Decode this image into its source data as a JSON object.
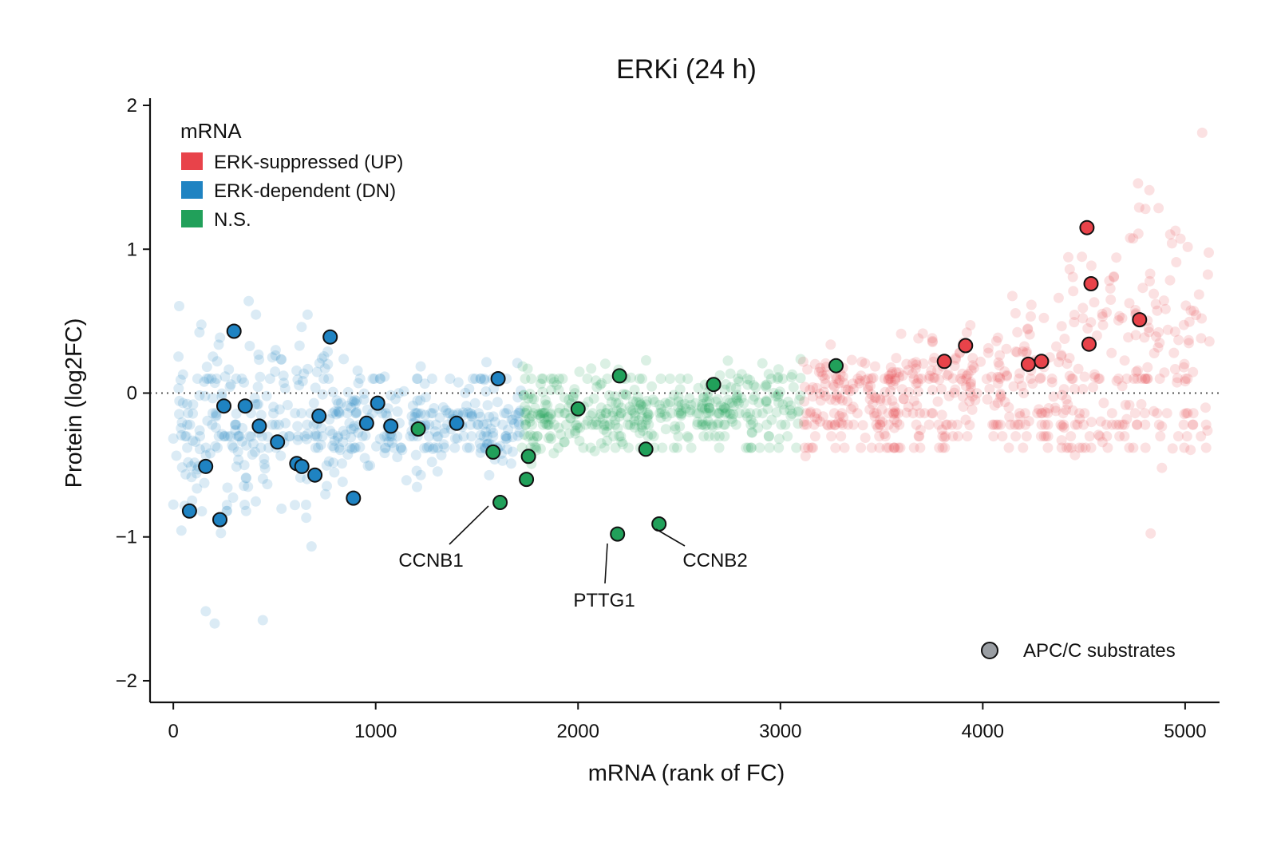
{
  "chart_data": {
    "type": "scatter",
    "title": "ERKi (24 h)",
    "xlabel": "mRNA (rank of FC)",
    "ylabel": "Protein (log2FC)",
    "xlim": [
      -115,
      5170
    ],
    "ylim": [
      -2.15,
      2.05
    ],
    "x_ticks": [
      0,
      1000,
      2000,
      3000,
      4000,
      5000
    ],
    "y_ticks": [
      2,
      1,
      0,
      -1,
      -2
    ],
    "y_tick_labels": [
      "2",
      "1",
      "0",
      "−1",
      "−2"
    ],
    "zero_line": {
      "y": 0,
      "style": "dotted"
    },
    "legend": {
      "title": "mRNA",
      "placement": "top-left",
      "entries": [
        {
          "label": "ERK-suppressed (UP)",
          "color": "#e8434a"
        },
        {
          "label": "ERK-dependent (DN)",
          "color": "#1f83c2"
        },
        {
          "label": "N.S.",
          "color": "#21a05a"
        }
      ]
    },
    "marker_legend": {
      "label": "APC/C substrates",
      "color": "#9a9ea3",
      "placement": "bottom-right"
    },
    "background_points": {
      "description": "approx. 5100 genes, x = rank of mRNA FC, y = protein log2FC, semi-transparent",
      "segments": [
        {
          "category": "ERK-dependent (DN)",
          "x_range": [
            0,
            1720
          ]
        },
        {
          "category": "N.S.",
          "x_range": [
            1720,
            3100
          ]
        },
        {
          "category": "ERK-suppressed (UP)",
          "x_range": [
            3100,
            5120
          ]
        }
      ]
    },
    "series": [
      {
        "category": "ERK-dependent (DN)",
        "color": "#1f83c2",
        "points": [
          [
            80,
            -0.82
          ],
          [
            160,
            -0.51
          ],
          [
            230,
            -0.88
          ],
          [
            250,
            -0.09
          ],
          [
            300,
            0.43
          ],
          [
            355,
            -0.09
          ],
          [
            425,
            -0.23
          ],
          [
            515,
            -0.34
          ],
          [
            610,
            -0.49
          ],
          [
            635,
            -0.51
          ],
          [
            700,
            -0.57
          ],
          [
            720,
            -0.16
          ],
          [
            775,
            0.39
          ],
          [
            890,
            -0.73
          ],
          [
            955,
            -0.21
          ],
          [
            1010,
            -0.07
          ],
          [
            1075,
            -0.23
          ],
          [
            1400,
            -0.21
          ],
          [
            1605,
            0.1
          ]
        ]
      },
      {
        "category": "N.S.",
        "color": "#21a05a",
        "points": [
          [
            1210,
            -0.25
          ],
          [
            1580,
            -0.41
          ],
          [
            1615,
            -0.76
          ],
          [
            1745,
            -0.6
          ],
          [
            1755,
            -0.44
          ],
          [
            2000,
            -0.11
          ],
          [
            2195,
            -0.98
          ],
          [
            2205,
            0.12
          ],
          [
            2335,
            -0.39
          ],
          [
            2400,
            -0.91
          ],
          [
            2670,
            0.06
          ],
          [
            3275,
            0.19
          ]
        ]
      },
      {
        "category": "ERK-suppressed (UP)",
        "color": "#e8434a",
        "points": [
          [
            3810,
            0.22
          ],
          [
            3915,
            0.33
          ],
          [
            4225,
            0.2
          ],
          [
            4290,
            0.22
          ],
          [
            4515,
            1.15
          ],
          [
            4525,
            0.34
          ],
          [
            4535,
            0.76
          ],
          [
            4775,
            0.51
          ]
        ]
      }
    ],
    "annotations": [
      {
        "text": "CCNB1",
        "x": 1615,
        "y": -0.76
      },
      {
        "text": "PTTG1",
        "x": 2195,
        "y": -0.98
      },
      {
        "text": "CCNB2",
        "x": 2400,
        "y": -0.91
      }
    ]
  }
}
